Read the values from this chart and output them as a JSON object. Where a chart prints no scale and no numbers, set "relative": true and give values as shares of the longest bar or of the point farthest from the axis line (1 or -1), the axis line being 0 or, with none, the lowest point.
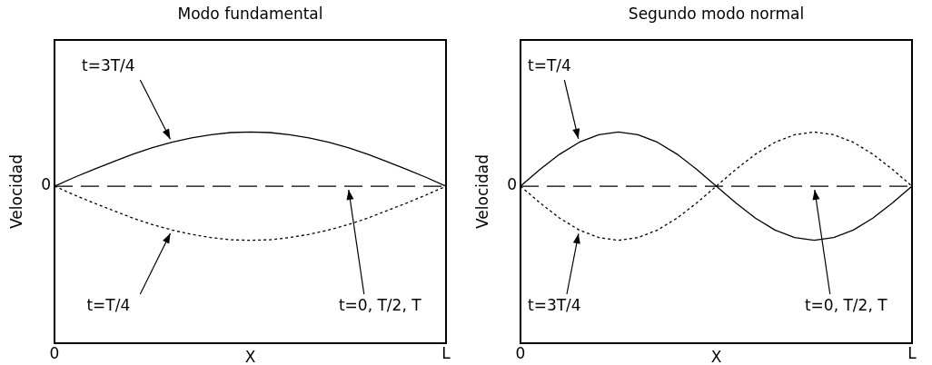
{
  "chart_data": [
    {
      "type": "line",
      "title": "Modo fundamental",
      "xlabel": "X",
      "ylabel": "Velocidad",
      "relative": true,
      "legend": false,
      "categories": [
        "0",
        null,
        null,
        null,
        null,
        null,
        null,
        null,
        null,
        null,
        null,
        null,
        null,
        null,
        null,
        null,
        null,
        null,
        null,
        null,
        "L"
      ],
      "series": [
        {
          "name": "t=3T/4",
          "color": "#000000",
          "line_style": "solid",
          "values": [
            0,
            0.16,
            0.31,
            0.45,
            0.59,
            0.71,
            0.81,
            0.89,
            0.95,
            0.99,
            1,
            0.99,
            0.95,
            0.89,
            0.81,
            0.71,
            0.59,
            0.45,
            0.31,
            0.16,
            0
          ]
        },
        {
          "name": "t=T/4",
          "color": "#000000",
          "line_style": "dotted",
          "values": [
            0,
            -0.16,
            -0.31,
            -0.45,
            -0.59,
            -0.71,
            -0.81,
            -0.89,
            -0.95,
            -0.99,
            -1,
            -0.99,
            -0.95,
            -0.89,
            -0.81,
            -0.71,
            -0.59,
            -0.45,
            -0.31,
            -0.16,
            0
          ]
        }
      ],
      "ref_lines": [
        {
          "axis": "y",
          "value": 0,
          "label": "0",
          "color": "#000000",
          "line_style": "dashed"
        }
      ],
      "annotations": [
        "t=0, T/2, T"
      ]
    },
    {
      "type": "line",
      "title": "Segundo modo normal",
      "xlabel": "X",
      "ylabel": "Velocidad",
      "relative": true,
      "legend": false,
      "categories": [
        "0",
        null,
        null,
        null,
        null,
        null,
        null,
        null,
        null,
        null,
        null,
        null,
        null,
        null,
        null,
        null,
        null,
        null,
        null,
        null,
        "L"
      ],
      "series": [
        {
          "name": "t=T/4",
          "color": "#000000",
          "line_style": "solid",
          "values": [
            0,
            0.31,
            0.59,
            0.81,
            0.95,
            1,
            0.95,
            0.81,
            0.59,
            0.31,
            0,
            -0.31,
            -0.59,
            -0.81,
            -0.95,
            -1,
            -0.95,
            -0.81,
            -0.59,
            -0.31,
            0
          ]
        },
        {
          "name": "t=3T/4",
          "color": "#000000",
          "line_style": "dotted",
          "values": [
            0,
            -0.31,
            -0.59,
            -0.81,
            -0.95,
            -1,
            -0.95,
            -0.81,
            -0.59,
            -0.31,
            0,
            0.31,
            0.59,
            0.81,
            0.95,
            1,
            0.95,
            0.81,
            0.59,
            0.31,
            0
          ]
        }
      ],
      "ref_lines": [
        {
          "axis": "y",
          "value": 0,
          "label": "0",
          "color": "#000000",
          "line_style": "dashed"
        }
      ],
      "annotations": [
        "t=0, T/2, T"
      ]
    }
  ]
}
